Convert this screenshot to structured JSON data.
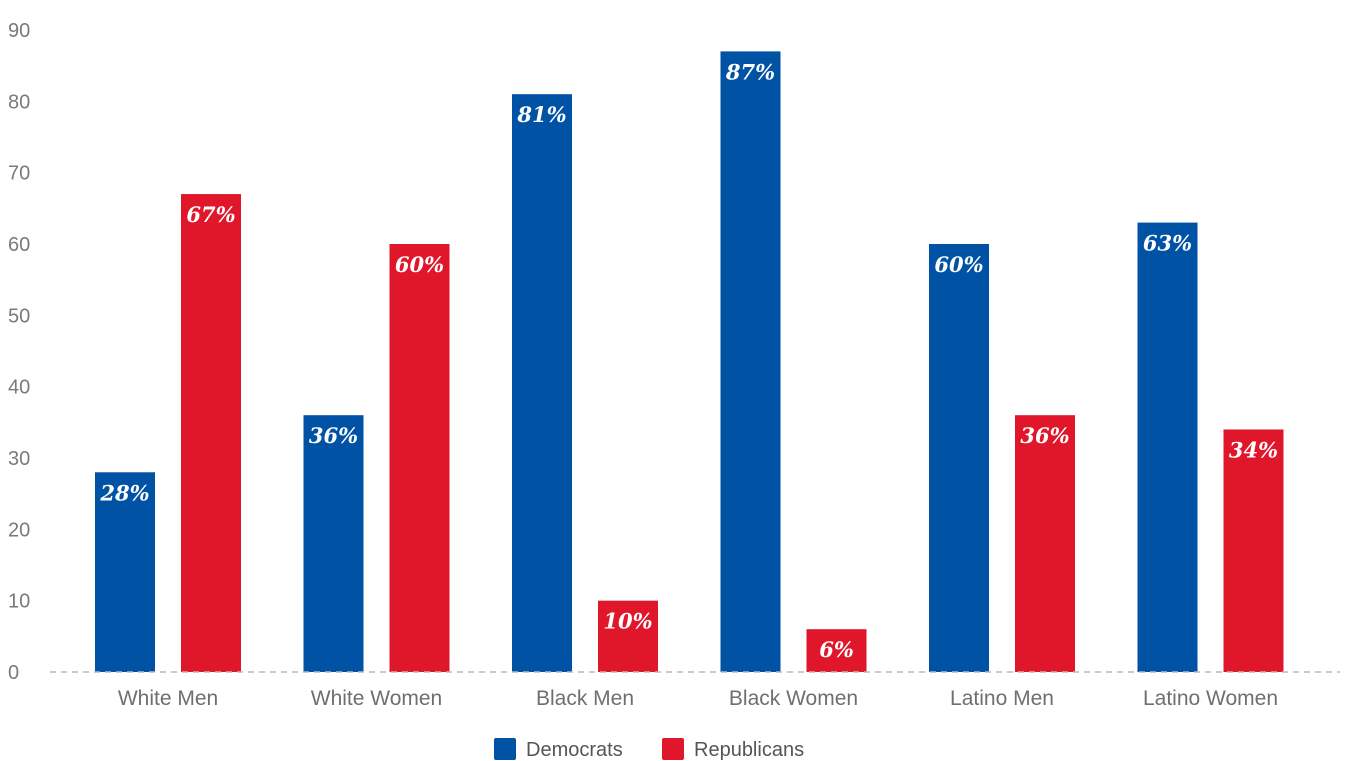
{
  "chart_data": {
    "type": "bar",
    "categories": [
      "White Men",
      "White Women",
      "Black Men",
      "Black Women",
      "Latino Men",
      "Latino Women"
    ],
    "series": [
      {
        "name": "Democrats",
        "color": "#0052a5",
        "values": [
          28,
          36,
          81,
          87,
          60,
          63
        ],
        "labels": [
          "28%",
          "36%",
          "81%",
          "87%",
          "60%",
          "63%"
        ]
      },
      {
        "name": "Republicans",
        "color": "#e0162b",
        "values": [
          67,
          60,
          10,
          6,
          36,
          34
        ],
        "labels": [
          "67%",
          "60%",
          "10%",
          "6%",
          "36%",
          "34%"
        ]
      }
    ],
    "yticks": [
      "0",
      "10",
      "20",
      "30",
      "40",
      "50",
      "60",
      "70",
      "80",
      "90"
    ],
    "ylim": [
      0,
      90
    ],
    "grid": false,
    "baseline": "dashed",
    "legend": "bottom-center"
  }
}
